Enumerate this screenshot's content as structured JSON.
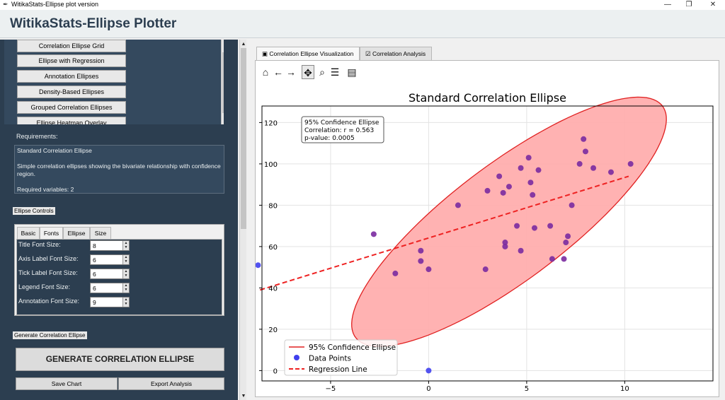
{
  "window": {
    "title": "WitikaStats-Ellipse plot version",
    "minimize": "—",
    "maximize": "❐",
    "close": "✕"
  },
  "app": {
    "title": "WitikaStats-Ellipse Plotter"
  },
  "chart_list": {
    "items": [
      "Correlation Ellipse Grid",
      "Ellipse with Regression",
      "Annotation Ellipses",
      "Density-Based Ellipses",
      "Grouped Correlation Ellipses",
      "Ellipse Heatmap Overlay"
    ]
  },
  "requirements": {
    "label": "Requirements:",
    "text": "Standard Correlation Ellipse\n\nSimple correlation ellipses showing the bivariate relationship with confidence region.\n\nRequired variables: 2"
  },
  "ellipse_controls": {
    "label": "Ellipse Controls",
    "tabs": [
      "Basic",
      "Fonts",
      "Ellipse",
      "Size"
    ],
    "active_tab": "Fonts",
    "fields": [
      {
        "label": "Title Font Size:",
        "value": "8"
      },
      {
        "label": "Axis Label Font Size:",
        "value": "6"
      },
      {
        "label": "Tick Label Font Size:",
        "value": "6"
      },
      {
        "label": "Legend Font Size:",
        "value": "6"
      },
      {
        "label": "Annotation Font Size:",
        "value": "9"
      }
    ]
  },
  "generate": {
    "section_label": "Generate Correlation Ellipse",
    "button": "GENERATE CORRELATION ELLIPSE"
  },
  "actions": {
    "save": "Save Chart",
    "export": "Export Analysis"
  },
  "right_tabs": [
    "Correlation Ellipse Visualization",
    "Correlation Analysis"
  ],
  "toolbar_icons": [
    "home-icon",
    "back-icon",
    "forward-icon",
    "pan-icon",
    "zoom-icon",
    "configure-icon",
    "save-icon"
  ],
  "chart_data": {
    "type": "scatter",
    "title": "Standard Correlation Ellipse",
    "xlim": [
      -8.5,
      14.5
    ],
    "ylim": [
      -5,
      128
    ],
    "x_ticks": [
      -5,
      0,
      5,
      10
    ],
    "y_ticks": [
      0,
      20,
      40,
      60,
      80,
      100,
      120
    ],
    "grid": true,
    "annotation": [
      "95% Confidence Ellipse",
      "Correlation: r = 0.563",
      "p-value: 0.0005"
    ],
    "legend_position": "lower-left",
    "legend": [
      "95% Confidence Ellipse",
      "Data Points",
      "Regression Line"
    ],
    "colors": {
      "ellipse_fill": "#ffaaaa",
      "ellipse_edge": "#e02020",
      "points": "#4040ee",
      "regression": "#ee2222",
      "overlap": "#7a2aa0"
    },
    "ellipse": {
      "center": [
        4.1,
        72.0
      ],
      "width": 19.0,
      "height": 58.0,
      "angle_deg": 34
    },
    "regression": {
      "x": [
        -8.6,
        10.2
      ],
      "y": [
        39,
        94
      ]
    },
    "points": [
      [
        -8.7,
        51
      ],
      [
        0,
        0
      ],
      [
        -2.8,
        66
      ],
      [
        -1.7,
        47
      ],
      [
        -0.4,
        53
      ],
      [
        -0.4,
        58
      ],
      [
        0,
        49
      ],
      [
        1.5,
        80
      ],
      [
        2.9,
        49
      ],
      [
        3.0,
        87
      ],
      [
        3.6,
        94
      ],
      [
        3.8,
        86
      ],
      [
        3.9,
        62
      ],
      [
        3.9,
        60
      ],
      [
        4.1,
        89
      ],
      [
        4.5,
        70
      ],
      [
        4.7,
        98
      ],
      [
        4.7,
        58
      ],
      [
        5.1,
        103
      ],
      [
        5.2,
        91
      ],
      [
        5.3,
        85
      ],
      [
        5.4,
        69
      ],
      [
        5.6,
        97
      ],
      [
        6.2,
        70
      ],
      [
        6.3,
        54
      ],
      [
        6.9,
        54
      ],
      [
        7.0,
        62
      ],
      [
        7.1,
        65
      ],
      [
        7.3,
        80
      ],
      [
        7.7,
        100
      ],
      [
        7.9,
        112
      ],
      [
        8.0,
        106
      ],
      [
        8.4,
        98
      ],
      [
        9.3,
        96
      ],
      [
        10.3,
        100
      ]
    ]
  }
}
